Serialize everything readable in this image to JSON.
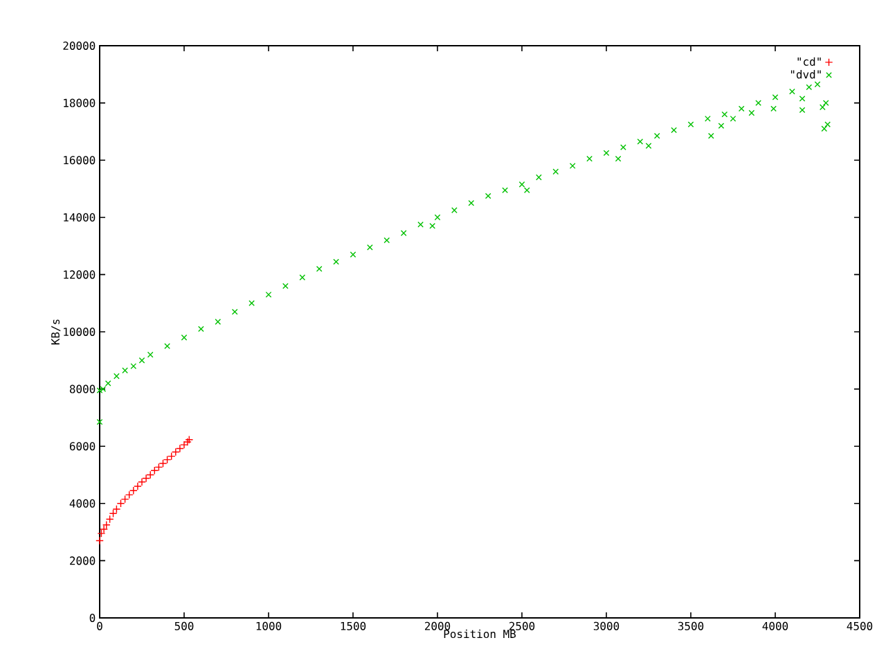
{
  "chart_data": {
    "type": "scatter",
    "xlabel": "Position MB",
    "ylabel": "KB/s",
    "xlim": [
      0,
      4500
    ],
    "xticks": [
      0,
      500,
      1000,
      1500,
      2000,
      2500,
      3000,
      3500,
      4000,
      4500
    ],
    "ylim": [
      0,
      20000
    ],
    "yticks": [
      0,
      2000,
      4000,
      6000,
      8000,
      10000,
      12000,
      14000,
      16000,
      18000,
      20000
    ],
    "legend": "top right",
    "grid": false,
    "series": [
      {
        "name": "\"cd\"",
        "color": "#ff0000",
        "marker": "plus",
        "x": [
          0,
          10,
          25,
          40,
          60,
          80,
          100,
          125,
          150,
          175,
          200,
          225,
          250,
          275,
          300,
          325,
          350,
          375,
          400,
          425,
          450,
          475,
          500,
          520,
          530
        ],
        "values": [
          2700,
          2950,
          3100,
          3250,
          3450,
          3650,
          3800,
          4000,
          4150,
          4300,
          4450,
          4600,
          4750,
          4880,
          5000,
          5150,
          5270,
          5400,
          5530,
          5650,
          5800,
          5920,
          6050,
          6150,
          6230
        ]
      },
      {
        "name": "\"dvd\"",
        "color": "#00c000",
        "marker": "cross",
        "x": [
          0,
          0,
          20,
          50,
          100,
          150,
          200,
          250,
          300,
          400,
          500,
          600,
          700,
          800,
          900,
          1000,
          1100,
          1200,
          1300,
          1400,
          1500,
          1600,
          1700,
          1800,
          1900,
          1970,
          2000,
          2100,
          2200,
          2300,
          2400,
          2500,
          2530,
          2600,
          2700,
          2800,
          2900,
          3000,
          3070,
          3100,
          3200,
          3250,
          3300,
          3400,
          3500,
          3600,
          3620,
          3680,
          3700,
          3750,
          3800,
          3860,
          3900,
          3990,
          4000,
          4100,
          4160,
          4160,
          4200,
          4250,
          4280,
          4290,
          4300,
          4310
        ],
        "values": [
          6850,
          7950,
          8000,
          8200,
          8450,
          8650,
          8800,
          9000,
          9200,
          9500,
          9800,
          10100,
          10350,
          10700,
          11000,
          11300,
          11600,
          11900,
          12200,
          12450,
          12700,
          12950,
          13200,
          13450,
          13750,
          13700,
          14000,
          14250,
          14500,
          14750,
          14950,
          15150,
          14950,
          15400,
          15600,
          15800,
          16050,
          16250,
          16050,
          16450,
          16650,
          16500,
          16850,
          17050,
          17250,
          17450,
          16850,
          17200,
          17600,
          17450,
          17800,
          17650,
          18000,
          17800,
          18200,
          18400,
          18150,
          17750,
          18550,
          18650,
          17850,
          17100,
          18000,
          17250
        ]
      }
    ]
  }
}
